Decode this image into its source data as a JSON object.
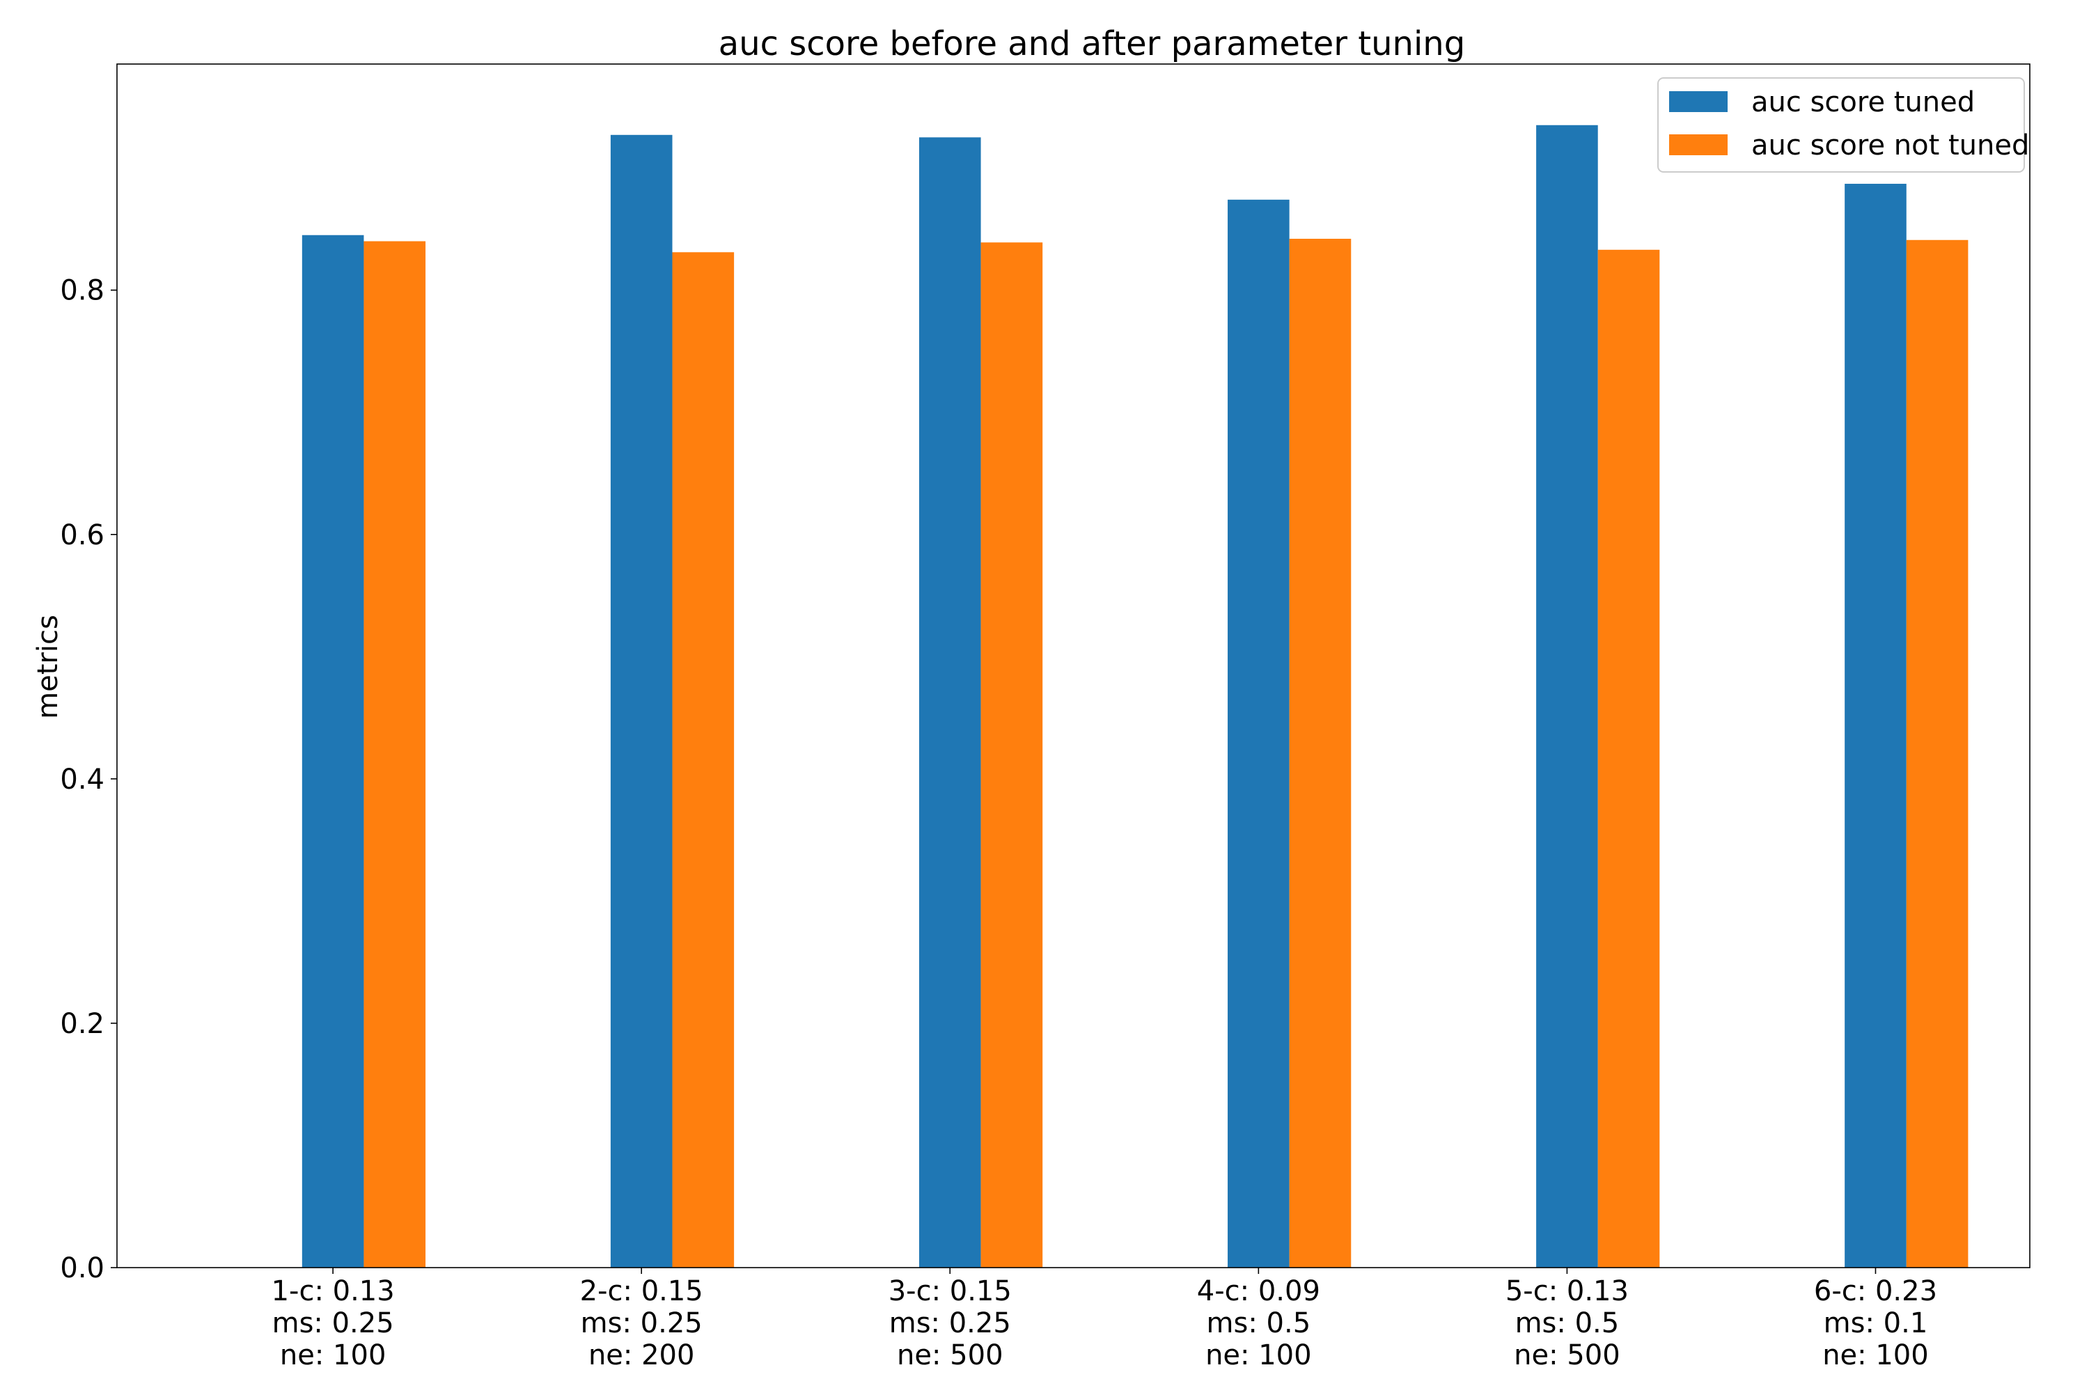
{
  "chart_data": {
    "type": "bar",
    "title": "auc score before and after parameter tuning",
    "xlabel": "",
    "ylabel": "metrics",
    "ylim": [
      0,
      0.985
    ],
    "yticks": [
      0.0,
      0.2,
      0.4,
      0.6,
      0.8
    ],
    "ytick_labels": [
      "0.0",
      "0.2",
      "0.4",
      "0.6",
      "0.8"
    ],
    "grid": false,
    "legend_position": "top-right",
    "categories": [
      [
        "1-c: 0.13",
        "ms: 0.25",
        "ne: 100"
      ],
      [
        "2-c: 0.15",
        "ms: 0.25",
        "ne: 200"
      ],
      [
        "3-c: 0.15",
        "ms: 0.25",
        "ne: 500"
      ],
      [
        "4-c: 0.09",
        "ms: 0.5",
        "ne: 100"
      ],
      [
        "5-c: 0.13",
        "ms: 0.5",
        "ne: 500"
      ],
      [
        "6-c: 0.23",
        "ms: 0.1",
        "ne: 100"
      ]
    ],
    "series": [
      {
        "name": "auc score tuned",
        "color": "#1f77b4",
        "values": [
          0.845,
          0.927,
          0.925,
          0.874,
          0.935,
          0.887
        ]
      },
      {
        "name": "auc score not tuned",
        "color": "#ff7f0e",
        "values": [
          0.84,
          0.831,
          0.839,
          0.842,
          0.833,
          0.841
        ]
      }
    ]
  }
}
